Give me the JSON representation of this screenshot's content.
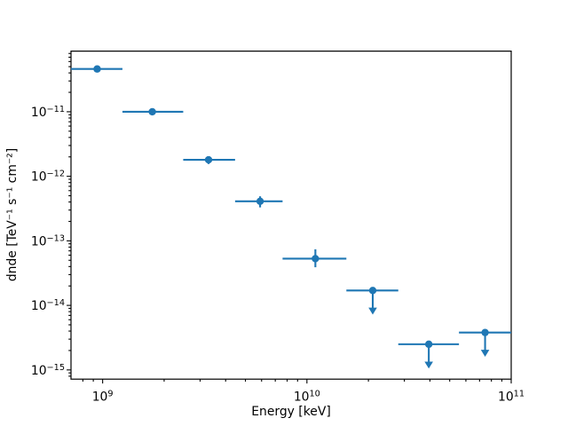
{
  "figure": {
    "background_color": "#ffffff"
  },
  "chart_data": {
    "type": "scatter",
    "subtype": "errorbar-flux-points-with-upper-limits",
    "title": "",
    "xlabel": "Energy [keV]",
    "ylabel": "dnde [TeV⁻¹ s⁻¹ cm⁻²]",
    "xscale": "log",
    "yscale": "log",
    "xlim": [
      700000000.0,
      100000000000.0
    ],
    "ylim": [
      7.2e-16,
      8.7e-11
    ],
    "x_major_tick_exponents": [
      9,
      10,
      11
    ],
    "y_major_tick_exponents": [
      -11,
      -12,
      -13,
      -14,
      -15
    ],
    "grid": false,
    "legend": false,
    "series_color": "#1f77b4",
    "axis_color": "#000000",
    "marker": "circle",
    "points": [
      {
        "energy_kev": 940000000.0,
        "energy_lo": 700000000.0,
        "energy_hi": 1250000000.0,
        "dnde": 4.6e-11,
        "dnde_lo": null,
        "dnde_hi": null,
        "upper_limit": false,
        "arrow_to": null
      },
      {
        "energy_kev": 1750000000.0,
        "energy_lo": 1250000000.0,
        "energy_hi": 2480000000.0,
        "dnde": 1e-11,
        "dnde_lo": null,
        "dnde_hi": null,
        "upper_limit": false,
        "arrow_to": null
      },
      {
        "energy_kev": 3300000000.0,
        "energy_lo": 2480000000.0,
        "energy_hi": 4450000000.0,
        "dnde": 1.8e-12,
        "dnde_lo": 1.55e-12,
        "dnde_hi": 2.05e-12,
        "upper_limit": false,
        "arrow_to": null
      },
      {
        "energy_kev": 5900000000.0,
        "energy_lo": 4450000000.0,
        "energy_hi": 7600000000.0,
        "dnde": 4.1e-13,
        "dnde_lo": 3.3e-13,
        "dnde_hi": 4.9e-13,
        "upper_limit": false,
        "arrow_to": null
      },
      {
        "energy_kev": 11000000000.0,
        "energy_lo": 7600000000.0,
        "energy_hi": 15600000000.0,
        "dnde": 5.3e-14,
        "dnde_lo": 3.9e-14,
        "dnde_hi": 7.4e-14,
        "upper_limit": false,
        "arrow_to": null
      },
      {
        "energy_kev": 21000000000.0,
        "energy_lo": 15600000000.0,
        "energy_hi": 28000000000.0,
        "dnde": 1.7e-14,
        "dnde_lo": null,
        "dnde_hi": null,
        "upper_limit": true,
        "arrow_to": 7.2e-15
      },
      {
        "energy_kev": 39500000000.0,
        "energy_lo": 28000000000.0,
        "energy_hi": 55500000000.0,
        "dnde": 2.5e-15,
        "dnde_lo": null,
        "dnde_hi": null,
        "upper_limit": true,
        "arrow_to": 1.05e-15
      },
      {
        "energy_kev": 74500000000.0,
        "energy_lo": 55500000000.0,
        "energy_hi": 100000000000.0,
        "dnde": 3.8e-15,
        "dnde_lo": null,
        "dnde_hi": null,
        "upper_limit": true,
        "arrow_to": 1.6e-15
      }
    ]
  }
}
